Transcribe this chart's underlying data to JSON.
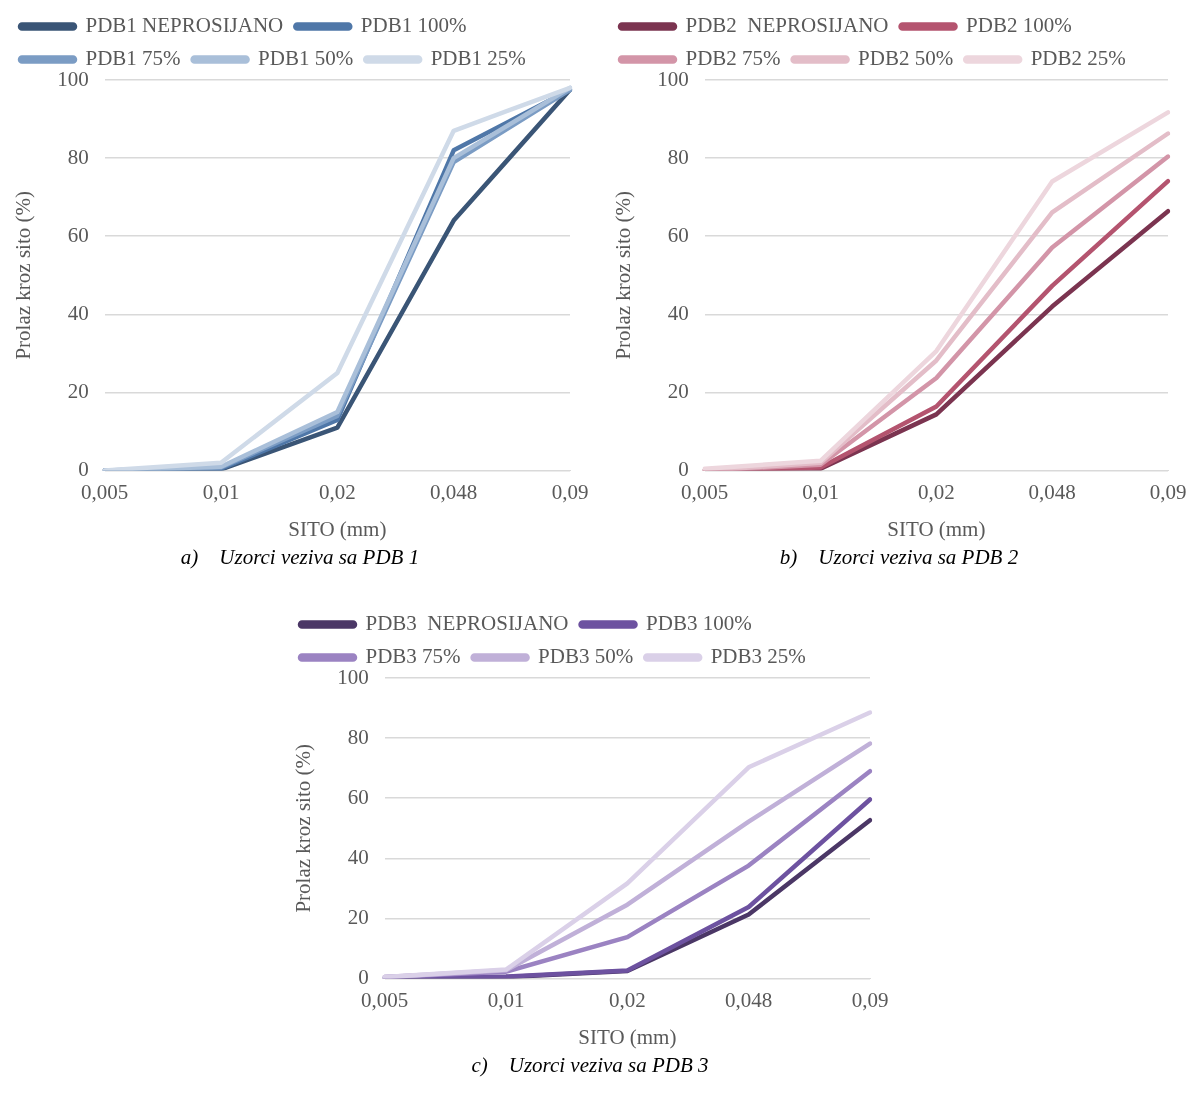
{
  "chart_data": [
    {
      "type": "line",
      "categories": [
        "0,005",
        "0,01",
        "0,02",
        "0,048",
        "0,09"
      ],
      "xlabel": "SITO (mm)",
      "ylabel": "Prolaz kroz sito (%)",
      "ylim": [
        0,
        100
      ],
      "yticks": [
        0,
        20,
        40,
        60,
        80,
        100
      ],
      "grid": "y",
      "legend": "top left",
      "annotations": [
        "a)    Uzorci veziva sa PDB 1"
      ],
      "series": [
        {
          "name": "PDB1 NEPROSIJANO",
          "color": "#3a5576",
          "values": [
            0,
            0.3,
            11,
            64,
            97.5
          ]
        },
        {
          "name": "PDB1 100%",
          "color": "#4f77a8",
          "values": [
            0,
            0.5,
            13,
            82,
            97.5
          ]
        },
        {
          "name": "PDB1 75%",
          "color": "#7b9cc4",
          "values": [
            0,
            0.8,
            14,
            79,
            97.5
          ]
        },
        {
          "name": "PDB1 50%",
          "color": "#a9bfd9",
          "values": [
            0,
            1,
            15,
            80,
            98
          ]
        },
        {
          "name": "PDB1 25%",
          "color": "#cfdae8",
          "values": [
            0,
            2,
            25,
            87,
            98
          ]
        }
      ]
    },
    {
      "type": "line",
      "categories": [
        "0,005",
        "0,01",
        "0,02",
        "0,048",
        "0,09"
      ],
      "xlabel": "SITO (mm)",
      "ylabel": "Prolaz kroz sito (%)",
      "ylim": [
        0,
        100
      ],
      "yticks": [
        0,
        20,
        40,
        60,
        80,
        100
      ],
      "grid": "y",
      "legend": "top left",
      "annotations": [
        "b)    Uzorci veziva sa PDB 2"
      ],
      "series": [
        {
          "name": "PDB2  NEPROSIJANO",
          "color": "#7b3450",
          "values": [
            0,
            0.5,
            14.4,
            42,
            66.4
          ]
        },
        {
          "name": "PDB2 100%",
          "color": "#b4546f",
          "values": [
            0,
            0.8,
            16.4,
            47.3,
            74.1
          ]
        },
        {
          "name": "PDB2 75%",
          "color": "#d395a8",
          "values": [
            0,
            1.5,
            23.7,
            57.1,
            80.4
          ]
        },
        {
          "name": "PDB2 50%",
          "color": "#e3bdc8",
          "values": [
            0,
            2,
            28.2,
            66.1,
            86.3
          ]
        },
        {
          "name": "PDB2 25%",
          "color": "#edd6dd",
          "values": [
            0.5,
            2.5,
            30.6,
            74,
            91.7
          ]
        }
      ]
    },
    {
      "type": "line",
      "categories": [
        "0,005",
        "0,01",
        "0,02",
        "0,048",
        "0,09"
      ],
      "xlabel": "SITO (mm)",
      "ylabel": "Prolaz kroz sito (%)",
      "ylim": [
        0,
        100
      ],
      "yticks": [
        0,
        20,
        40,
        60,
        80,
        100
      ],
      "grid": "y",
      "legend": "top left",
      "annotations": [
        "c)    Uzorci veziva sa PDB 3"
      ],
      "series": [
        {
          "name": "PDB3  NEPROSIJANO",
          "color": "#4b3766",
          "values": [
            0,
            0.5,
            2.5,
            21.3,
            52.7
          ]
        },
        {
          "name": "PDB3 100%",
          "color": "#6d52a0",
          "values": [
            0,
            0.7,
            2.7,
            23.8,
            59.6
          ]
        },
        {
          "name": "PDB3 75%",
          "color": "#9b83c2",
          "values": [
            0.5,
            2.3,
            13.8,
            37.6,
            69
          ]
        },
        {
          "name": "PDB3 50%",
          "color": "#c0b0d8",
          "values": [
            0.5,
            2.8,
            24.6,
            52.2,
            78.2
          ]
        },
        {
          "name": "PDB3 25%",
          "color": "#dad0e8",
          "values": [
            0.5,
            3,
            31.7,
            70.3,
            88.5
          ]
        }
      ]
    }
  ]
}
